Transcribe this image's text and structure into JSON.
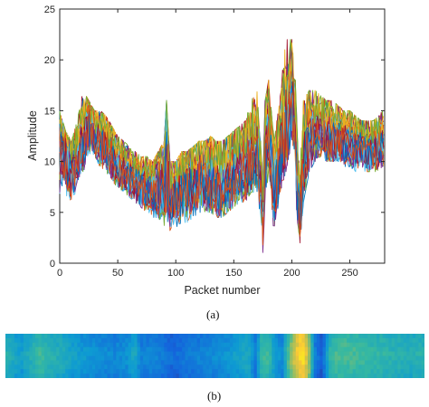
{
  "panels": {
    "a": "(a)",
    "b": "(b)"
  },
  "chart_data": [
    {
      "type": "line",
      "xlabel": "Packet number",
      "ylabel": "Amplitude",
      "xlim": [
        0,
        280
      ],
      "ylim": [
        0,
        25
      ],
      "xticks": [
        0,
        50,
        100,
        150,
        200,
        250
      ],
      "yticks": [
        0,
        5,
        10,
        15,
        20,
        25
      ],
      "grid": false,
      "series_count": 30,
      "x": [
        0,
        5,
        10,
        15,
        20,
        25,
        30,
        35,
        40,
        45,
        50,
        55,
        60,
        65,
        70,
        75,
        80,
        85,
        90,
        92,
        95,
        100,
        105,
        110,
        115,
        120,
        125,
        130,
        135,
        140,
        145,
        150,
        155,
        160,
        165,
        170,
        173,
        175,
        177,
        180,
        183,
        185,
        190,
        195,
        200,
        203,
        205,
        207,
        210,
        215,
        220,
        225,
        230,
        235,
        240,
        245,
        250,
        255,
        260,
        265,
        270,
        275,
        278
      ],
      "mean": [
        12,
        11,
        9.5,
        11,
        12.5,
        14.5,
        13,
        12.5,
        12,
        11,
        10,
        9.5,
        9,
        8.5,
        8,
        8,
        7.5,
        8,
        8.5,
        12,
        7,
        7.5,
        8,
        8,
        8.5,
        9,
        9,
        9,
        8.5,
        8.5,
        9,
        9.5,
        10,
        10,
        11,
        12,
        9,
        5,
        12,
        14,
        10,
        8,
        12,
        15,
        17,
        14,
        8,
        5,
        11,
        13,
        13.5,
        13.5,
        13,
        13,
        13,
        12.5,
        12.5,
        12,
        12,
        11.5,
        11.5,
        12,
        12
      ],
      "max_envelope": [
        15,
        13,
        12,
        14,
        17,
        16,
        15,
        15,
        14.5,
        13.5,
        12.5,
        12,
        11.5,
        11,
        10.5,
        10.5,
        10,
        11,
        12,
        16,
        10,
        10,
        11,
        11,
        11.5,
        12,
        12,
        12.5,
        12,
        12,
        12.5,
        13,
        13.5,
        14,
        16,
        17,
        12,
        8,
        16,
        18,
        14,
        12,
        17,
        22,
        22,
        18,
        12,
        9,
        16,
        17,
        17,
        16.5,
        16,
        16,
        15.5,
        15,
        15,
        14.5,
        14,
        14,
        14,
        14.5,
        15
      ],
      "min_envelope": [
        6,
        6,
        5,
        8,
        9,
        10,
        10,
        9.5,
        9,
        8,
        7.5,
        7,
        6.5,
        6,
        5.5,
        5,
        4.5,
        4.5,
        3.5,
        2,
        3,
        3.5,
        4,
        4,
        4.5,
        5,
        5,
        5,
        4.5,
        4.5,
        5,
        5.5,
        6,
        6,
        7,
        7,
        4,
        1,
        5,
        9,
        4,
        3,
        7,
        9,
        12,
        8,
        2.5,
        2,
        6,
        9,
        10,
        10.5,
        10,
        10,
        10,
        9.5,
        9.5,
        9,
        9,
        9,
        9,
        9,
        9.5
      ]
    },
    {
      "type": "heatmap",
      "xlim": [
        0,
        280
      ],
      "columns": [
        0.55,
        0.5,
        0.42,
        0.5,
        0.55,
        0.62,
        0.56,
        0.54,
        0.52,
        0.48,
        0.44,
        0.42,
        0.4,
        0.38,
        0.36,
        0.36,
        0.34,
        0.36,
        0.38,
        0.5,
        0.31,
        0.33,
        0.34,
        0.3,
        0.26,
        0.24,
        0.26,
        0.3,
        0.3,
        0.33,
        0.34,
        0.36,
        0.38,
        0.4,
        0.44,
        0.46,
        0.5,
        0.3,
        0.6,
        0.62,
        0.42,
        0.36,
        0.66,
        0.86,
        0.95,
        0.78,
        0.28,
        0.2,
        0.56,
        0.62,
        0.64,
        0.63,
        0.62,
        0.61,
        0.6,
        0.58,
        0.58,
        0.56,
        0.55,
        0.54,
        0.53,
        0.55,
        0.56
      ]
    }
  ]
}
